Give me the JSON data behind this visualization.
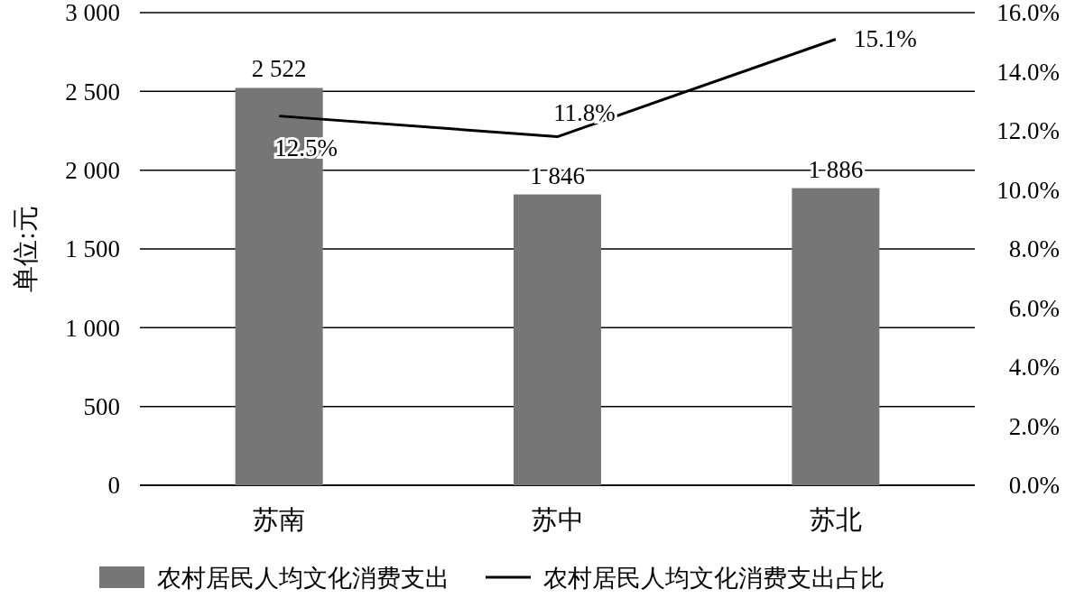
{
  "chart_data": {
    "type": "bar",
    "ylabel": "单位:元",
    "categories": [
      "苏南",
      "苏中",
      "苏北"
    ],
    "series": [
      {
        "name": "农村居民人均文化消费支出",
        "color": "#767676",
        "values": [
          2522,
          1846,
          1886
        ],
        "value_labels": [
          "2 522",
          "1 846",
          "1 886"
        ]
      },
      {
        "name": "农村居民人均文化消费支出占比",
        "type": "line",
        "axis": "y2",
        "color": "#000000",
        "values": [
          12.5,
          11.8,
          15.1
        ],
        "value_labels": [
          "12.5%",
          "11.8%",
          "15.1%"
        ]
      }
    ],
    "ylim": [
      0,
      3000
    ],
    "yticks": [
      0,
      500,
      {
        "value": 1000,
        "label": "1 000"
      },
      {
        "value": 1500,
        "label": "1 500"
      },
      {
        "value": 2000,
        "label": "2 000"
      },
      {
        "value": 2500,
        "label": "2 500"
      },
      {
        "value": 3000,
        "label": "3 000"
      }
    ],
    "y2lim": [
      0,
      16
    ],
    "y2ticks": [
      {
        "value": 0,
        "label": "0.0%"
      },
      {
        "value": 2,
        "label": "2.0%"
      },
      {
        "value": 4,
        "label": "4.0%"
      },
      {
        "value": 6,
        "label": "6.0%"
      },
      {
        "value": 8,
        "label": "8.0%"
      },
      {
        "value": 10,
        "label": "10.0%"
      },
      {
        "value": 12,
        "label": "12.0%"
      },
      {
        "value": 14,
        "label": "14.0%"
      },
      {
        "value": 16,
        "label": "16.0%"
      }
    ],
    "grid": "y",
    "legend": "bottom",
    "marker": "none",
    "line_style": "solid"
  }
}
